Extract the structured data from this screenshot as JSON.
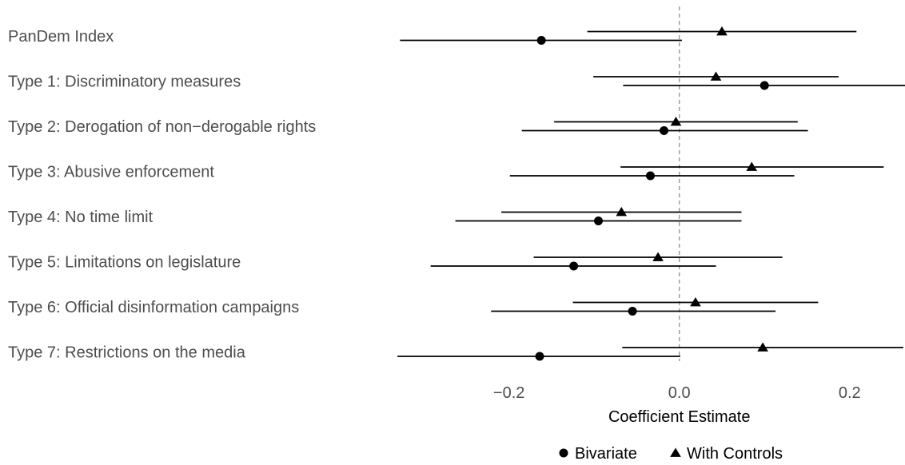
{
  "chart_data": {
    "type": "scatter",
    "subtype": "coefficient-plot",
    "orientation": "horizontal",
    "categories": [
      "PanDem Index",
      "Type 1: Discriminatory measures",
      "Type 2: Derogation of non−derogable rights",
      "Type 3: Abusive enforcement",
      "Type 4: No time limit",
      "Type 5: Limitations on legislature",
      "Type 6: Official disinformation campaigns",
      "Type 7: Restrictions on the media"
    ],
    "series": [
      {
        "name": "Bivariate",
        "marker": "circle",
        "estimate": [
          -0.162,
          0.1,
          -0.018,
          -0.034,
          -0.095,
          -0.124,
          -0.055,
          -0.164
        ],
        "lower": [
          -0.328,
          -0.066,
          -0.185,
          -0.199,
          -0.263,
          -0.292,
          -0.221,
          -0.331
        ],
        "upper": [
          0.003,
          0.266,
          0.151,
          0.135,
          0.073,
          0.043,
          0.113,
          0.001
        ]
      },
      {
        "name": "With Controls",
        "marker": "triangle",
        "estimate": [
          0.05,
          0.043,
          -0.004,
          0.085,
          -0.068,
          -0.025,
          0.019,
          0.098
        ],
        "lower": [
          -0.108,
          -0.101,
          -0.147,
          -0.069,
          -0.209,
          -0.171,
          -0.125,
          -0.067
        ],
        "upper": [
          0.208,
          0.187,
          0.139,
          0.24,
          0.073,
          0.121,
          0.163,
          0.263
        ]
      }
    ],
    "xlabel": "Coefficient Estimate",
    "ylabel": "",
    "xlim": [
      -0.333,
      0.265
    ],
    "xticks": [
      -0.2,
      0.0,
      0.2
    ],
    "xtick_labels": [
      "−0.2",
      "0.0",
      "0.2"
    ],
    "reference_line": 0,
    "grid": false,
    "legend_position": "bottom",
    "colors": {
      "points": "#000000",
      "reference_line": "#999999",
      "text": "#4d4d4d"
    }
  }
}
